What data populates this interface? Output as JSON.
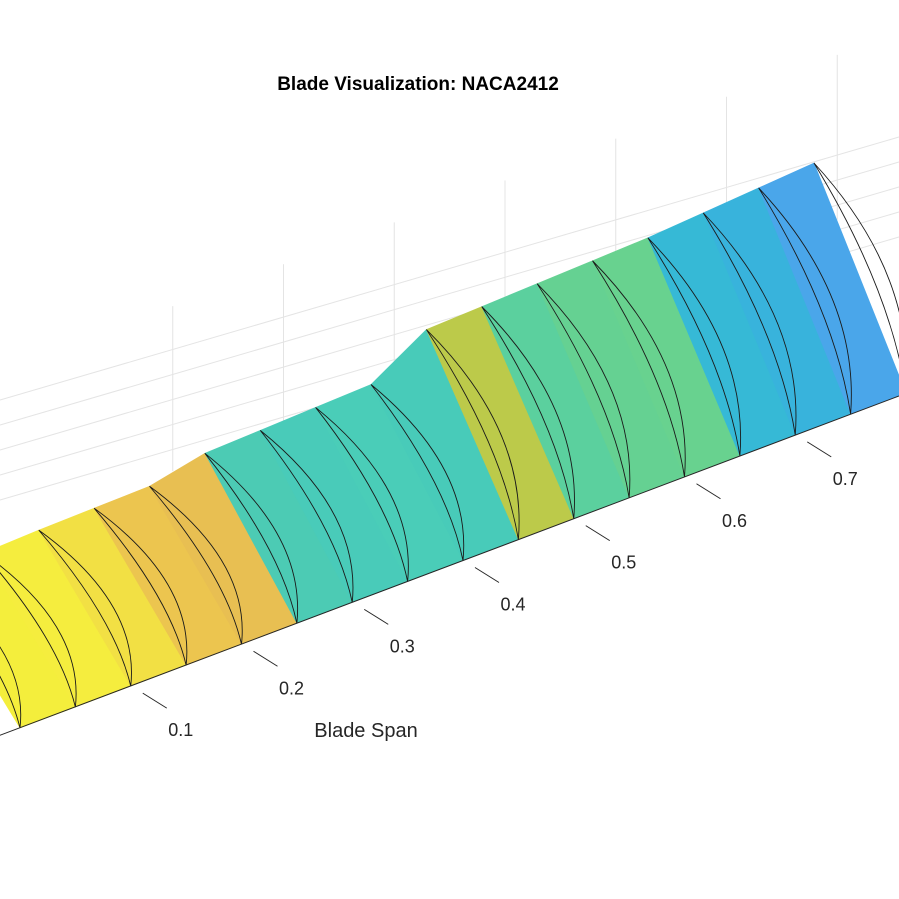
{
  "chart_data": {
    "type": "surface",
    "title": "Blade Visualization: NACA2412",
    "xlabel": "Blade Span",
    "xticks": [
      0.1,
      0.2,
      0.3,
      0.4,
      0.5,
      0.6,
      0.7
    ],
    "grid": true,
    "colormap": "parula",
    "sections": [
      {
        "span": 0.0,
        "color": "#f4ee3c"
      },
      {
        "span": 0.05,
        "color": "#f5ed3e"
      },
      {
        "span": 0.1,
        "color": "#f2e044"
      },
      {
        "span": 0.15,
        "color": "#ecc54f"
      },
      {
        "span": 0.2,
        "color": "#e8bf52"
      },
      {
        "span": 0.25,
        "color": "#4ccbb4"
      },
      {
        "span": 0.3,
        "color": "#49cbb9"
      },
      {
        "span": 0.35,
        "color": "#4acdb8"
      },
      {
        "span": 0.4,
        "color": "#48cbb9"
      },
      {
        "span": 0.45,
        "color": "#bcca4a"
      },
      {
        "span": 0.5,
        "color": "#5bd09e"
      },
      {
        "span": 0.55,
        "color": "#65d192"
      },
      {
        "span": 0.6,
        "color": "#68d28f"
      },
      {
        "span": 0.65,
        "color": "#36b9d6"
      },
      {
        "span": 0.7,
        "color": "#38b3dc"
      },
      {
        "span": 0.75,
        "color": "#4aa6ea"
      },
      {
        "span": 0.8,
        "color": "#459fee"
      }
    ]
  }
}
